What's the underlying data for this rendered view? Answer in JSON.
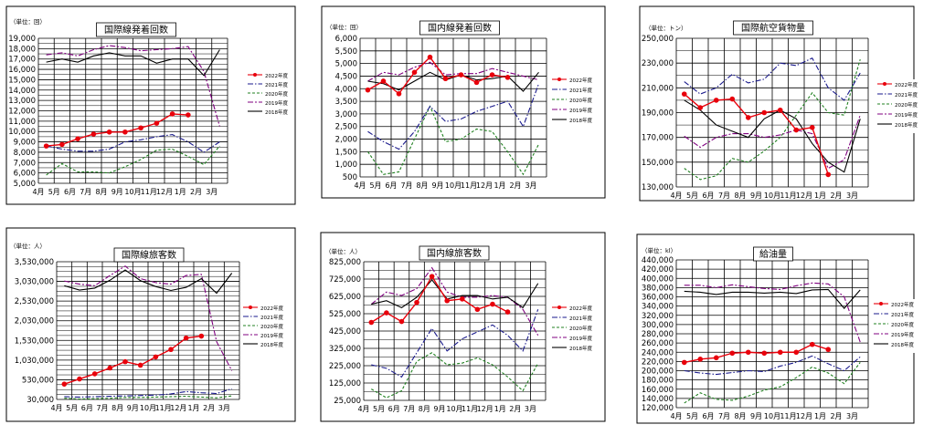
{
  "months": [
    "4月",
    "5月",
    "6月",
    "7月",
    "8月",
    "9月",
    "10月",
    "11月",
    "12月",
    "1月",
    "2月",
    "3月"
  ],
  "legend": [
    "2022年度",
    "2021年度",
    "2020年度",
    "2019年度",
    "2018年度"
  ],
  "colors": {
    "2022年度": "#e8000b",
    "2021年度": "#1a1a8c",
    "2020年度": "#208020",
    "2019年度": "#800080",
    "2018年度": "#000000",
    "grid": "#000000",
    "frame": "#000000"
  },
  "chart_data": [
    {
      "type": "line",
      "title": "国際線発着回数",
      "unit_label": "（単位：回）",
      "ylim": [
        5000,
        19000
      ],
      "yticks": [
        "5,000",
        "6,000",
        "7,000",
        "8,000",
        "9,000",
        "10,000",
        "11,000",
        "12,000",
        "13,000",
        "14,000",
        "15,000",
        "16,000",
        "17,000",
        "18,000",
        "19,000"
      ],
      "series": [
        {
          "name": "2022年度",
          "values": [
            8600,
            8750,
            9300,
            9750,
            9950,
            9950,
            10350,
            10800,
            11700,
            11600,
            null,
            null
          ]
        },
        {
          "name": "2021年度",
          "values": [
            8600,
            8300,
            8100,
            8100,
            8300,
            9000,
            9200,
            9500,
            9700,
            9000,
            8000,
            9000
          ]
        },
        {
          "name": "2020年度",
          "values": [
            5800,
            6900,
            6100,
            6100,
            6000,
            6600,
            7300,
            8200,
            8300,
            7600,
            6800,
            8600
          ]
        },
        {
          "name": "2019年度",
          "values": [
            17400,
            17600,
            17300,
            17900,
            18300,
            18100,
            17800,
            17900,
            18000,
            18200,
            15800,
            10500
          ]
        },
        {
          "name": "2018年度",
          "values": [
            16700,
            17000,
            16700,
            17300,
            17600,
            17300,
            17300,
            16600,
            17000,
            17000,
            15400,
            17900
          ]
        }
      ]
    },
    {
      "type": "line",
      "title": "国内線発着回数",
      "unit_label": "（単位：回）",
      "ylim": [
        500,
        6000
      ],
      "yticks": [
        "500",
        "1,000",
        "1,500",
        "2,000",
        "2,500",
        "3,000",
        "3,500",
        "4,000",
        "4,500",
        "5,000",
        "5,500",
        "6,000"
      ],
      "series": [
        {
          "name": "2022年度",
          "values": [
            3950,
            4300,
            3800,
            4650,
            5250,
            4400,
            4550,
            4250,
            4550,
            4450,
            null,
            null
          ]
        },
        {
          "name": "2021年度",
          "values": [
            2300,
            1900,
            1600,
            2300,
            3300,
            2700,
            2800,
            3100,
            3300,
            3500,
            2500,
            4200
          ]
        },
        {
          "name": "2020年度",
          "values": [
            1500,
            600,
            700,
            2000,
            3300,
            1900,
            2000,
            2400,
            2300,
            1500,
            600,
            1800
          ]
        },
        {
          "name": "2019年度",
          "values": [
            4300,
            4650,
            4550,
            4850,
            5050,
            4550,
            4600,
            4600,
            4800,
            4650,
            4500,
            4350
          ]
        },
        {
          "name": "2018年度",
          "values": [
            4300,
            4200,
            3950,
            4300,
            4650,
            4350,
            4550,
            4350,
            4400,
            4500,
            3900,
            4650
          ]
        }
      ]
    },
    {
      "type": "line",
      "title": "国際航空貨物量",
      "unit_label": "（単位：トン）",
      "ylim": [
        130000,
        250000
      ],
      "yticks": [
        "130,000",
        "150,000",
        "170,000",
        "190,000",
        "210,000",
        "230,000",
        "250,000"
      ],
      "series": [
        {
          "name": "2022年度",
          "values": [
            205000,
            194000,
            200000,
            201000,
            186000,
            190000,
            192000,
            176000,
            178000,
            140000,
            null,
            null
          ]
        },
        {
          "name": "2021年度",
          "values": [
            215000,
            205000,
            210000,
            221000,
            214000,
            217000,
            230000,
            228000,
            234000,
            210000,
            200000,
            222000
          ]
        },
        {
          "name": "2020年度",
          "values": [
            145000,
            136000,
            139000,
            153000,
            150000,
            159000,
            170000,
            188000,
            206000,
            190000,
            188000,
            233000
          ]
        },
        {
          "name": "2019年度",
          "values": [
            171000,
            162000,
            170000,
            173000,
            173000,
            170000,
            172000,
            176000,
            173000,
            145000,
            152000,
            188000
          ]
        },
        {
          "name": "2018年度",
          "values": [
            200000,
            192000,
            180000,
            175000,
            170000,
            185000,
            192000,
            185000,
            165000,
            150000,
            142000,
            185000
          ]
        }
      ]
    },
    {
      "type": "line",
      "title": "国際線旅客数",
      "unit_label": "（単位：人）",
      "ylim": [
        30000,
        3530000
      ],
      "yticks": [
        "30,000",
        "530,000",
        "1,030,000",
        "1,530,000",
        "2,030,000",
        "2,530,000",
        "3,030,000",
        "3,530,000"
      ],
      "series": [
        {
          "name": "2022年度",
          "values": [
            420000,
            550000,
            680000,
            830000,
            990000,
            900000,
            1110000,
            1300000,
            1590000,
            1640000,
            null,
            null
          ]
        },
        {
          "name": "2021年度",
          "values": [
            100000,
            90000,
            100000,
            110000,
            120000,
            130000,
            140000,
            170000,
            230000,
            200000,
            180000,
            300000
          ]
        },
        {
          "name": "2020年度",
          "values": [
            60000,
            40000,
            50000,
            60000,
            80000,
            80000,
            90000,
            100000,
            110000,
            90000,
            70000,
            120000
          ]
        },
        {
          "name": "2019年度",
          "values": [
            3040000,
            2960000,
            2920000,
            3180000,
            3420000,
            3100000,
            3000000,
            2960000,
            3180000,
            3210000,
            1500000,
            760000
          ]
        },
        {
          "name": "2018年度",
          "values": [
            2920000,
            2810000,
            2860000,
            3060000,
            3320000,
            3050000,
            2900000,
            2800000,
            2880000,
            3100000,
            2730000,
            3240000
          ]
        }
      ]
    },
    {
      "type": "line",
      "title": "国内線旅客数",
      "unit_label": "（単位：人）",
      "ylim": [
        25000,
        825000
      ],
      "yticks": [
        "25,000",
        "125,000",
        "225,000",
        "325,000",
        "425,000",
        "525,000",
        "625,000",
        "725,000",
        "825,000"
      ],
      "series": [
        {
          "name": "2022年度",
          "values": [
            475000,
            530000,
            480000,
            590000,
            740000,
            600000,
            610000,
            550000,
            580000,
            535000,
            null,
            null
          ]
        },
        {
          "name": "2021年度",
          "values": [
            230000,
            210000,
            160000,
            300000,
            440000,
            310000,
            380000,
            420000,
            460000,
            400000,
            310000,
            550000
          ]
        },
        {
          "name": "2020年度",
          "values": [
            90000,
            40000,
            80000,
            250000,
            300000,
            230000,
            240000,
            270000,
            230000,
            160000,
            80000,
            240000
          ]
        },
        {
          "name": "2019年度",
          "values": [
            580000,
            650000,
            630000,
            670000,
            790000,
            650000,
            620000,
            620000,
            630000,
            620000,
            550000,
            400000
          ]
        },
        {
          "name": "2018年度",
          "values": [
            580000,
            600000,
            560000,
            620000,
            720000,
            610000,
            630000,
            630000,
            610000,
            620000,
            560000,
            700000
          ]
        }
      ]
    },
    {
      "type": "line",
      "title": "給油量",
      "unit_label": "（単位：kl）",
      "ylim": [
        120000,
        440000
      ],
      "yticks": [
        "120,000",
        "140,000",
        "160,000",
        "180,000",
        "200,000",
        "220,000",
        "240,000",
        "260,000",
        "280,000",
        "300,000",
        "320,000",
        "340,000",
        "360,000",
        "380,000",
        "400,000",
        "420,000",
        "440,000"
      ],
      "series": [
        {
          "name": "2022年度",
          "values": [
            218000,
            225000,
            228000,
            238000,
            240000,
            238000,
            240000,
            240000,
            257000,
            246000,
            null,
            null
          ]
        },
        {
          "name": "2021年度",
          "values": [
            200000,
            195000,
            192000,
            196000,
            200000,
            198000,
            210000,
            218000,
            232000,
            215000,
            200000,
            230000
          ]
        },
        {
          "name": "2020年度",
          "values": [
            130000,
            152000,
            138000,
            136000,
            145000,
            158000,
            165000,
            185000,
            208000,
            195000,
            172000,
            218000
          ]
        },
        {
          "name": "2019年度",
          "values": [
            385000,
            385000,
            380000,
            386000,
            382000,
            378000,
            376000,
            384000,
            390000,
            388000,
            360000,
            262000
          ]
        },
        {
          "name": "2018年度",
          "values": [
            372000,
            370000,
            365000,
            370000,
            370000,
            368000,
            370000,
            367000,
            375000,
            376000,
            335000,
            375000
          ]
        }
      ]
    }
  ]
}
